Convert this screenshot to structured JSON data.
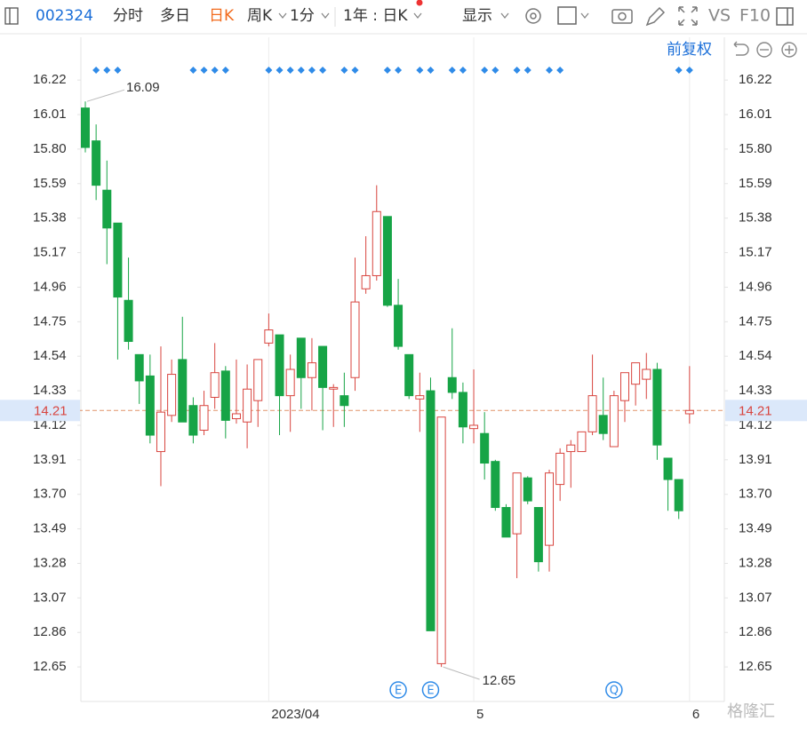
{
  "toolbar": {
    "code": "002324",
    "items": [
      "分时",
      "多日",
      "日K",
      "周K",
      "1分",
      "1年 : 日K",
      "显示"
    ],
    "vs": "VS",
    "f10": "F10",
    "adjust": "前复权"
  },
  "watermark": "格隆汇",
  "chart_data": {
    "type": "candlestick",
    "categories": [
      null,
      null,
      null,
      null,
      null,
      null,
      null,
      null,
      null,
      null,
      null,
      null,
      null,
      null,
      null,
      null,
      null,
      "2023/04",
      null,
      null,
      null,
      null,
      null,
      null,
      null,
      null,
      null,
      null,
      null,
      null,
      null,
      null,
      null,
      null,
      null,
      null,
      "5",
      null,
      null,
      null,
      null,
      null,
      null,
      null,
      null,
      null,
      null,
      null,
      null,
      null,
      null,
      null,
      null,
      null,
      null,
      null,
      "6"
    ],
    "open": [
      16.05,
      15.85,
      15.55,
      15.35,
      14.88,
      14.55,
      14.42,
      13.96,
      14.18,
      14.52,
      14.24,
      14.09,
      14.29,
      14.45,
      14.16,
      14.14,
      14.27,
      14.62,
      14.67,
      14.3,
      14.65,
      14.41,
      14.6,
      14.34,
      14.3,
      14.41,
      14.95,
      15.03,
      15.39,
      14.85,
      14.55,
      14.28,
      14.33,
      12.67,
      14.41,
      14.32,
      14.1,
      14.07,
      13.9,
      13.62,
      13.46,
      13.8,
      13.62,
      13.39,
      13.76,
      13.96,
      13.96,
      14.08,
      14.18,
      13.99,
      14.27,
      14.37,
      14.4,
      14.46,
      13.92,
      13.79,
      14.19
    ],
    "high": [
      16.09,
      15.95,
      15.73,
      15.35,
      15.14,
      14.55,
      14.55,
      14.6,
      14.52,
      14.78,
      14.29,
      14.33,
      14.62,
      14.48,
      14.52,
      14.49,
      14.52,
      14.8,
      14.67,
      14.55,
      14.65,
      14.65,
      14.6,
      14.37,
      14.44,
      15.14,
      15.27,
      15.58,
      15.39,
      15.01,
      14.55,
      14.44,
      14.41,
      14.17,
      14.71,
      14.38,
      14.46,
      14.2,
      13.91,
      13.64,
      13.83,
      13.81,
      13.62,
      13.85,
      13.98,
      14.03,
      14.08,
      14.55,
      14.41,
      14.33,
      14.44,
      14.5,
      14.56,
      14.5,
      13.92,
      13.79,
      14.48
    ],
    "low": [
      15.78,
      15.49,
      15.1,
      14.52,
      14.58,
      14.25,
      14.01,
      13.75,
      14.14,
      14.14,
      14.01,
      14.06,
      14.22,
      14.04,
      14.13,
      13.98,
      14.11,
      14.6,
      14.06,
      14.08,
      14.22,
      14.21,
      14.09,
      14.11,
      14.11,
      14.33,
      14.92,
      15.0,
      14.84,
      14.58,
      14.28,
      14.08,
      12.87,
      12.65,
      14.28,
      14.01,
      14.01,
      13.79,
      13.6,
      13.44,
      13.19,
      13.64,
      13.23,
      13.23,
      13.66,
      13.74,
      13.96,
      14.06,
      14.03,
      13.99,
      14.14,
      14.24,
      14.28,
      13.91,
      13.6,
      13.55,
      14.13
    ],
    "close": [
      15.81,
      15.58,
      15.32,
      14.9,
      14.63,
      14.39,
      14.06,
      14.2,
      14.43,
      14.14,
      14.06,
      14.24,
      14.44,
      14.15,
      14.19,
      14.34,
      14.52,
      14.7,
      14.3,
      14.46,
      14.41,
      14.5,
      14.35,
      14.35,
      14.24,
      14.87,
      15.03,
      15.42,
      14.85,
      14.6,
      14.3,
      14.3,
      12.87,
      14.17,
      14.32,
      14.11,
      14.12,
      13.89,
      13.62,
      13.44,
      13.83,
      13.66,
      13.29,
      13.83,
      13.95,
      14.0,
      14.08,
      14.3,
      14.07,
      14.3,
      14.44,
      14.5,
      14.46,
      14.0,
      13.79,
      13.6,
      14.21
    ],
    "up_color": "#d8453f",
    "down_color": "#17a446",
    "price_line_color": "#e0946a",
    "ylim": [
      12.44,
      16.48
    ],
    "yticks": [
      16.22,
      16.01,
      {
        "value": 15.8,
        "label": "15.80"
      },
      15.59,
      15.38,
      15.17,
      14.96,
      14.75,
      14.54,
      14.33,
      14.12,
      13.91,
      {
        "value": 13.7,
        "label": "13.70"
      },
      13.49,
      13.28,
      13.07,
      12.86,
      12.65
    ],
    "grid": "x",
    "events": [
      {
        "label": "E",
        "candle": 29
      },
      {
        "label": "E",
        "candle": 32
      },
      {
        "label": "Q",
        "candle": 49
      }
    ]
  }
}
